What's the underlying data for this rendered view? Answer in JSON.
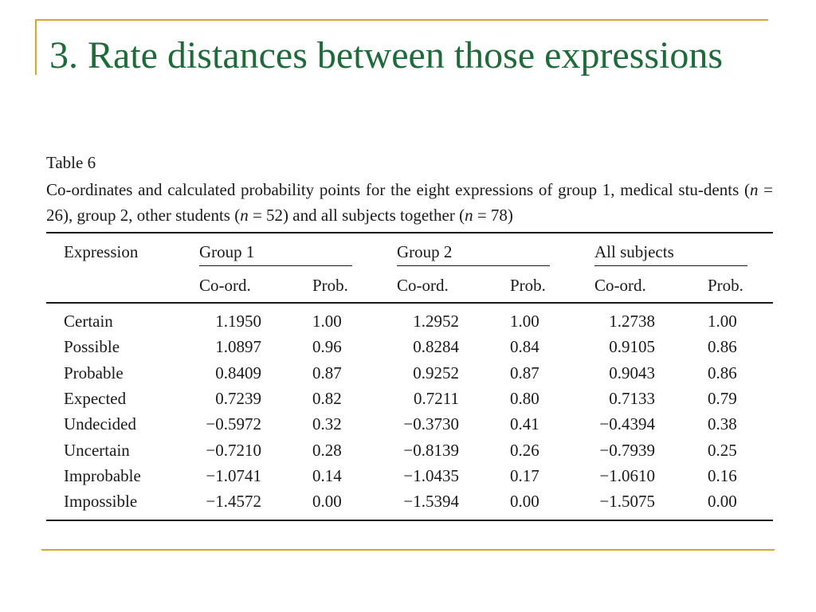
{
  "slide": {
    "title": "3. Rate distances between those expressions"
  },
  "table": {
    "label": "Table  6",
    "caption_parts": {
      "p1": "Co-ordinates and calculated probability points for the eight expressions of group 1, medical stu-dents (",
      "n1_var": "n",
      "n1_val": " = 26), group 2, other students (",
      "n2_var": "n",
      "n2_val": " = 52) and all subjects together (",
      "n3_var": "n",
      "n3_val": " = 78)"
    },
    "headers": {
      "expression": "Expression",
      "group1": "Group 1",
      "group2": "Group 2",
      "all": "All subjects",
      "coord": "Co-ord.",
      "prob": "Prob."
    },
    "rows": [
      {
        "expression": "Certain",
        "g1_coord": "1.1950",
        "g1_prob": "1.00",
        "g2_coord": "1.2952",
        "g2_prob": "1.00",
        "all_coord": "1.2738",
        "all_prob": "1.00"
      },
      {
        "expression": "Possible",
        "g1_coord": "1.0897",
        "g1_prob": "0.96",
        "g2_coord": "0.8284",
        "g2_prob": "0.84",
        "all_coord": "0.9105",
        "all_prob": "0.86"
      },
      {
        "expression": "Probable",
        "g1_coord": "0.8409",
        "g1_prob": "0.87",
        "g2_coord": "0.9252",
        "g2_prob": "0.87",
        "all_coord": "0.9043",
        "all_prob": "0.86"
      },
      {
        "expression": "Expected",
        "g1_coord": "0.7239",
        "g1_prob": "0.82",
        "g2_coord": "0.7211",
        "g2_prob": "0.80",
        "all_coord": "0.7133",
        "all_prob": "0.79"
      },
      {
        "expression": "Undecided",
        "g1_coord": "−0.5972",
        "g1_prob": "0.32",
        "g2_coord": "−0.3730",
        "g2_prob": "0.41",
        "all_coord": "−0.4394",
        "all_prob": "0.38"
      },
      {
        "expression": "Uncertain",
        "g1_coord": "−0.7210",
        "g1_prob": "0.28",
        "g2_coord": "−0.8139",
        "g2_prob": "0.26",
        "all_coord": "−0.7939",
        "all_prob": "0.25"
      },
      {
        "expression": "Improbable",
        "g1_coord": "−1.0741",
        "g1_prob": "0.14",
        "g2_coord": "−1.0435",
        "g2_prob": "0.17",
        "all_coord": "−1.0610",
        "all_prob": "0.16"
      },
      {
        "expression": "Impossible",
        "g1_coord": "−1.4572",
        "g1_prob": "0.00",
        "g2_coord": "−1.5394",
        "g2_prob": "0.00",
        "all_coord": "−1.5075",
        "all_prob": "0.00"
      }
    ]
  },
  "colors": {
    "title": "#1e6b3a",
    "accent_rule": "#d9a62e",
    "text": "#1a1a1a"
  }
}
